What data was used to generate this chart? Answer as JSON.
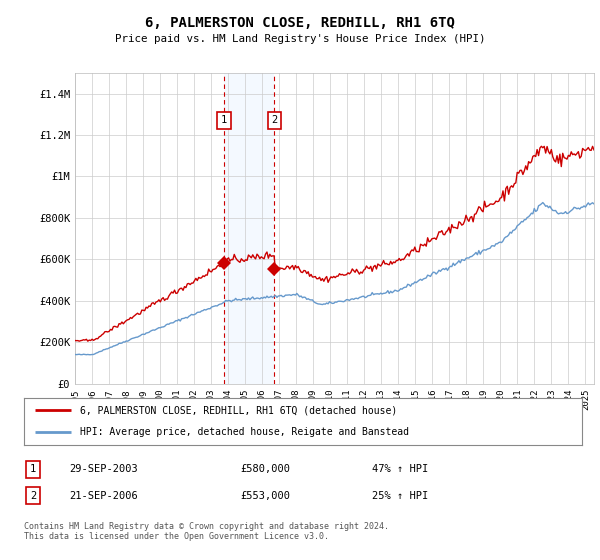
{
  "title": "6, PALMERSTON CLOSE, REDHILL, RH1 6TQ",
  "subtitle": "Price paid vs. HM Land Registry's House Price Index (HPI)",
  "ylabel_ticks": [
    "£0",
    "£200K",
    "£400K",
    "£600K",
    "£800K",
    "£1M",
    "£1.2M",
    "£1.4M"
  ],
  "ytick_values": [
    0,
    200000,
    400000,
    600000,
    800000,
    1000000,
    1200000,
    1400000
  ],
  "ylim": [
    0,
    1500000
  ],
  "xlim_start": 1995.0,
  "xlim_end": 2025.5,
  "sale1_date": 2003.75,
  "sale1_price": 580000,
  "sale1_label": "1",
  "sale1_text": "29-SEP-2003",
  "sale1_price_text": "£580,000",
  "sale1_hpi_text": "47% ↑ HPI",
  "sale2_date": 2006.72,
  "sale2_price": 553000,
  "sale2_label": "2",
  "sale2_text": "21-SEP-2006",
  "sale2_price_text": "£553,000",
  "sale2_hpi_text": "25% ↑ HPI",
  "legend_line1": "6, PALMERSTON CLOSE, REDHILL, RH1 6TQ (detached house)",
  "legend_line2": "HPI: Average price, detached house, Reigate and Banstead",
  "footer": "Contains HM Land Registry data © Crown copyright and database right 2024.\nThis data is licensed under the Open Government Licence v3.0.",
  "line_color_red": "#cc0000",
  "line_color_blue": "#6699cc",
  "background_color": "#ffffff",
  "grid_color": "#cccccc",
  "shade_color": "#ddeeff",
  "sale_marker_color": "#cc0000"
}
